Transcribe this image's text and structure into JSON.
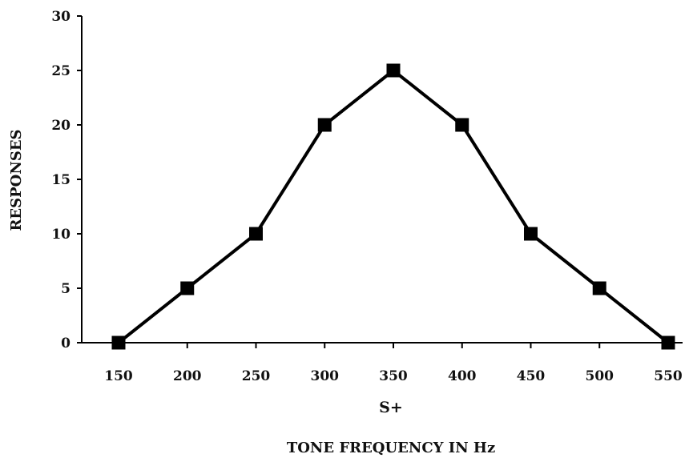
{
  "chart_data": {
    "type": "line",
    "title": "",
    "xlabel": "TONE FREQUENCY IN Hz",
    "xlabel_marker": "S+",
    "ylabel": "RESPONSES",
    "x": [
      150,
      200,
      250,
      300,
      350,
      400,
      450,
      500,
      550
    ],
    "x_tick_labels": [
      "150",
      "200",
      "250",
      "300",
      "350",
      "400",
      "450",
      "500",
      "550"
    ],
    "y_tick_labels": [
      "0",
      "5",
      "10",
      "15",
      "20",
      "25",
      "30"
    ],
    "ylim": [
      0,
      30
    ],
    "series": [
      {
        "values": [
          0,
          5,
          10,
          20,
          25,
          20,
          10,
          5,
          0
        ],
        "color": "#000000",
        "marker": "square"
      }
    ],
    "grid": false,
    "legend": "none"
  }
}
